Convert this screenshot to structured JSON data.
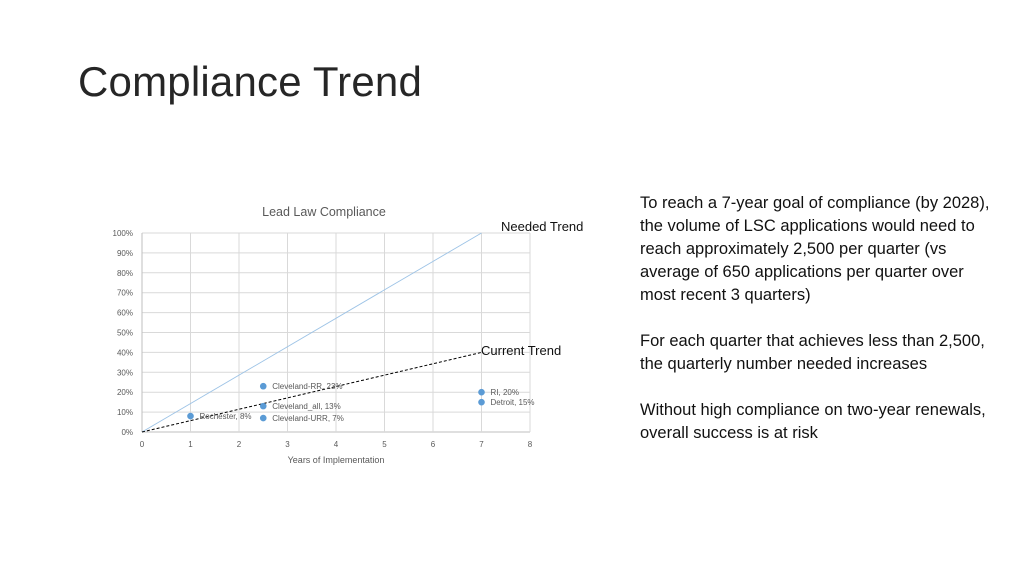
{
  "slide": {
    "title": "Compliance Trend",
    "paragraphs": [
      "To reach a 7-year goal of compliance (by 2028), the volume of LSC applications would need to reach approximately 2,500 per quarter (vs average of 650 applications per quarter over most recent 3 quarters)",
      "For each quarter that achieves less than 2,500, the quarterly number needed increases",
      "Without high compliance on two-year renewals, overall success is at risk"
    ],
    "callouts": {
      "needed": "Needed Trend",
      "current": "Current Trend"
    }
  },
  "chart_data": {
    "type": "scatter",
    "title": "Lead Law Compliance",
    "xlabel": "Years of Implementation",
    "ylabel": "",
    "xlim": [
      0,
      8
    ],
    "ylim": [
      0,
      100
    ],
    "x_ticks": [
      "0",
      "1",
      "2",
      "3",
      "4",
      "5",
      "6",
      "7",
      "8"
    ],
    "y_ticks": [
      "0%",
      "10%",
      "20%",
      "30%",
      "40%",
      "50%",
      "60%",
      "70%",
      "80%",
      "90%",
      "100%"
    ],
    "grid": true,
    "points": [
      {
        "x": 1,
        "y": 8,
        "label": "Rochester, 8%"
      },
      {
        "x": 2.5,
        "y": 23,
        "label": "Cleveland-RR, 23%"
      },
      {
        "x": 2.5,
        "y": 13,
        "label": "Cleveland_all, 13%"
      },
      {
        "x": 2.5,
        "y": 7,
        "label": "Cleveland-URR, 7%"
      },
      {
        "x": 7,
        "y": 20,
        "label": "RI, 20%"
      },
      {
        "x": 7,
        "y": 15,
        "label": "Detroit, 15%"
      }
    ],
    "trendlines": [
      {
        "kind": "needed",
        "style": "solid",
        "color": "#9dc3e6",
        "from": [
          0,
          0
        ],
        "to": [
          7,
          100
        ]
      },
      {
        "kind": "current",
        "style": "dashed",
        "color": "#000000",
        "from": [
          0,
          0
        ],
        "to": [
          7,
          40
        ]
      }
    ],
    "colors": {
      "point": "#5b9bd5",
      "grid": "#d9d9d9",
      "text": "#595959"
    }
  }
}
